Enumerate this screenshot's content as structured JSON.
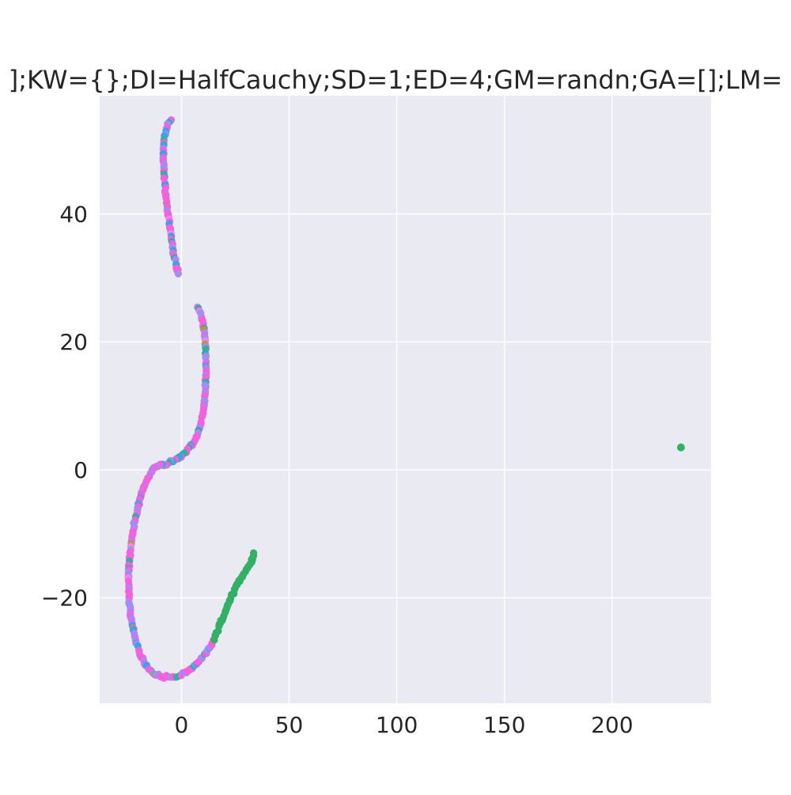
{
  "chart_data": {
    "type": "scatter",
    "title": "];KW={};DI=HalfCauchy;SD=1;ED=4;GM=randn;GA=[];LM=",
    "xlabel": "",
    "ylabel": "",
    "xlim": [
      -38,
      246
    ],
    "ylim": [
      -36.5,
      58.5
    ],
    "x_ticks": [
      0,
      50,
      100,
      150,
      200
    ],
    "x_tick_labels": [
      "0",
      "50",
      "100",
      "150",
      "200"
    ],
    "y_ticks": [
      -20,
      0,
      20,
      40
    ],
    "y_tick_labels": [
      "−20",
      "0",
      "20",
      "40"
    ],
    "grid": true,
    "colors": {
      "figure_background": "#ffffff",
      "plot_background": "#eaeaf2",
      "grid": "#ffffff",
      "text": "#262626"
    },
    "palette": [
      "#f461dd",
      "#a48cf4",
      "#36ada4",
      "#3ba3ec",
      "#32b166",
      "#ae9d31",
      "#e58ce6"
    ],
    "curve": [
      [
        -4.5,
        54.5
      ],
      [
        -6.5,
        54
      ],
      [
        -8,
        52
      ],
      [
        -8.5,
        49
      ],
      [
        -8,
        46
      ],
      [
        -7.3,
        43
      ],
      [
        -6.3,
        40
      ],
      [
        -5,
        37
      ],
      [
        -3.8,
        34
      ],
      [
        -2.5,
        32
      ],
      [
        -1,
        30.5
      ],
      [
        7.5,
        25.5
      ],
      [
        9.5,
        24
      ],
      [
        10.8,
        21
      ],
      [
        11.3,
        18
      ],
      [
        11.3,
        15
      ],
      [
        11,
        12
      ],
      [
        10,
        9
      ],
      [
        8.5,
        6.5
      ],
      [
        6,
        4.5
      ],
      [
        3,
        3
      ],
      [
        0,
        2
      ],
      [
        -3,
        1.5
      ],
      [
        -7,
        1
      ],
      [
        -10,
        0.7
      ],
      [
        -13,
        0.2
      ],
      [
        -15.5,
        -1.2
      ],
      [
        -18,
        -3
      ],
      [
        -20,
        -5.5
      ],
      [
        -22,
        -8.5
      ],
      [
        -23.3,
        -11.5
      ],
      [
        -24.3,
        -14.5
      ],
      [
        -24.6,
        -17.5
      ],
      [
        -24.3,
        -20.5
      ],
      [
        -23.3,
        -23.5
      ],
      [
        -21.5,
        -26.5
      ],
      [
        -19,
        -29
      ],
      [
        -16,
        -30.8
      ],
      [
        -12.5,
        -31.8
      ],
      [
        -9,
        -32.3
      ],
      [
        -5,
        -32.5
      ],
      [
        -1,
        -32.3
      ],
      [
        3,
        -31.5
      ],
      [
        7,
        -30.3
      ],
      [
        10.5,
        -29
      ],
      [
        13.5,
        -27.5
      ],
      [
        17,
        -25
      ],
      [
        20,
        -22.5
      ],
      [
        23,
        -20
      ],
      [
        26.5,
        -17.5
      ],
      [
        29.5,
        -16
      ],
      [
        32.5,
        -14.5
      ],
      [
        33.5,
        -13
      ]
    ],
    "green_tail_x_min": 15,
    "outlier": {
      "x": 232,
      "y": 3.5,
      "color": "#32b166"
    }
  }
}
